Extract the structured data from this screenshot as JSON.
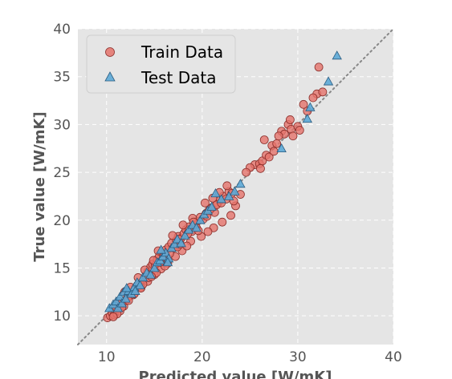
{
  "chart_data": {
    "type": "scatter",
    "xlabel": "Predicted value [W/mK]",
    "ylabel": "True value [W/mK]",
    "xlim": [
      7,
      40
    ],
    "ylim": [
      7,
      40
    ],
    "xticks": [
      "10",
      "20",
      "30",
      "40"
    ],
    "yticks": [
      "10",
      "15",
      "20",
      "25",
      "30",
      "35",
      "40"
    ],
    "grid": true,
    "legend_position": "top-left",
    "reference_line": "y = x (dotted)",
    "colors": {
      "train": "#E5736B",
      "test": "#5CA8D6",
      "background": "#E5E5E5",
      "reference": "#888888"
    },
    "series": [
      {
        "name": "Train Data",
        "marker": "circle",
        "points": [
          [
            10.1,
            9.8
          ],
          [
            10.4,
            10.0
          ],
          [
            10.6,
            10.3
          ],
          [
            10.8,
            10.1
          ],
          [
            11.0,
            10.6
          ],
          [
            11.2,
            10.9
          ],
          [
            11.4,
            10.5
          ],
          [
            11.6,
            11.2
          ],
          [
            11.8,
            11.0
          ],
          [
            12.0,
            11.6
          ],
          [
            12.2,
            11.9
          ],
          [
            12.4,
            12.1
          ],
          [
            12.6,
            12.4
          ],
          [
            12.8,
            12.2
          ],
          [
            13.0,
            12.9
          ],
          [
            13.2,
            13.1
          ],
          [
            13.4,
            13.4
          ],
          [
            13.6,
            13.0
          ],
          [
            13.9,
            13.8
          ],
          [
            14.1,
            14.2
          ],
          [
            14.3,
            14.6
          ],
          [
            14.6,
            15.1
          ],
          [
            14.8,
            15.4
          ],
          [
            15.1,
            15.3
          ],
          [
            15.3,
            15.9
          ],
          [
            15.5,
            16.2
          ],
          [
            15.8,
            16.6
          ],
          [
            16.0,
            16.3
          ],
          [
            16.2,
            16.9
          ],
          [
            16.5,
            17.2
          ],
          [
            16.8,
            17.6
          ],
          [
            17.0,
            17.1
          ],
          [
            17.3,
            17.9
          ],
          [
            17.5,
            18.3
          ],
          [
            17.8,
            18.1
          ],
          [
            18.1,
            18.6
          ],
          [
            18.3,
            19.0
          ],
          [
            18.6,
            19.3
          ],
          [
            18.9,
            18.8
          ],
          [
            19.2,
            19.6
          ],
          [
            19.5,
            19.9
          ],
          [
            19.8,
            20.3
          ],
          [
            20.1,
            20.1
          ],
          [
            20.4,
            20.7
          ],
          [
            20.7,
            21.0
          ],
          [
            21.0,
            21.3
          ],
          [
            21.3,
            20.8
          ],
          [
            21.6,
            21.7
          ],
          [
            21.9,
            22.1
          ],
          [
            22.2,
            22.5
          ],
          [
            22.5,
            22.2
          ],
          [
            22.8,
            23.0
          ],
          [
            23.1,
            22.8
          ],
          [
            23.5,
            21.5
          ],
          [
            23.0,
            20.5
          ],
          [
            22.1,
            19.8
          ],
          [
            21.2,
            19.2
          ],
          [
            20.6,
            18.8
          ],
          [
            19.9,
            18.3
          ],
          [
            18.8,
            17.8
          ],
          [
            17.9,
            16.8
          ],
          [
            17.2,
            16.2
          ],
          [
            16.4,
            15.5
          ],
          [
            15.7,
            14.9
          ],
          [
            15.0,
            14.3
          ],
          [
            14.3,
            13.6
          ],
          [
            13.6,
            12.9
          ],
          [
            12.9,
            12.3
          ],
          [
            12.3,
            11.6
          ],
          [
            11.6,
            10.9
          ],
          [
            11.1,
            10.2
          ],
          [
            10.7,
            9.9
          ],
          [
            14.4,
            14.0
          ],
          [
            15.2,
            14.5
          ],
          [
            16.3,
            15.7
          ],
          [
            17.4,
            17.2
          ],
          [
            18.5,
            18.6
          ],
          [
            19.4,
            19.2
          ],
          [
            20.5,
            20.4
          ],
          [
            21.5,
            21.6
          ],
          [
            16.9,
            18.4
          ],
          [
            18.0,
            19.5
          ],
          [
            19.0,
            20.2
          ],
          [
            20.3,
            21.8
          ],
          [
            21.1,
            22.3
          ],
          [
            15.4,
            16.8
          ],
          [
            14.0,
            14.8
          ],
          [
            13.3,
            14.0
          ],
          [
            12.5,
            13.0
          ],
          [
            11.9,
            12.5
          ],
          [
            11.3,
            11.5
          ],
          [
            10.9,
            11.0
          ],
          [
            13.8,
            13.3
          ],
          [
            14.9,
            15.8
          ],
          [
            16.6,
            16.5
          ],
          [
            17.7,
            17.5
          ],
          [
            18.4,
            17.3
          ],
          [
            19.6,
            18.9
          ],
          [
            22.0,
            21.8
          ],
          [
            23.3,
            22.0
          ],
          [
            24.0,
            22.7
          ],
          [
            25.5,
            25.8
          ],
          [
            26.0,
            25.9
          ],
          [
            26.3,
            26.2
          ],
          [
            26.7,
            26.8
          ],
          [
            27.0,
            26.6
          ],
          [
            27.3,
            27.8
          ],
          [
            27.8,
            28.0
          ],
          [
            28.3,
            29.3
          ],
          [
            28.6,
            29.0
          ],
          [
            29.0,
            30.0
          ],
          [
            29.3,
            29.5
          ],
          [
            29.5,
            28.8
          ],
          [
            30.0,
            29.8
          ],
          [
            30.6,
            32.1
          ],
          [
            31.0,
            31.4
          ],
          [
            29.2,
            30.5
          ],
          [
            28.0,
            28.8
          ],
          [
            26.5,
            28.4
          ],
          [
            25.0,
            25.5
          ],
          [
            26.1,
            25.4
          ],
          [
            27.5,
            27.2
          ],
          [
            32.0,
            33.2
          ],
          [
            32.6,
            33.4
          ],
          [
            32.2,
            36.0
          ],
          [
            31.6,
            32.8
          ],
          [
            30.2,
            29.4
          ],
          [
            24.6,
            25.0
          ],
          [
            22.6,
            23.6
          ],
          [
            21.8,
            22.9
          ],
          [
            20.9,
            21.2
          ],
          [
            19.1,
            19.8
          ],
          [
            17.6,
            18.0
          ],
          [
            16.1,
            15.2
          ],
          [
            15.6,
            15.6
          ],
          [
            14.7,
            14.1
          ]
        ]
      },
      {
        "name": "Test Data",
        "marker": "triangle",
        "points": [
          [
            10.3,
            10.8
          ],
          [
            10.7,
            11.2
          ],
          [
            11.0,
            11.5
          ],
          [
            11.2,
            10.8
          ],
          [
            11.4,
            12.0
          ],
          [
            11.6,
            11.3
          ],
          [
            11.8,
            12.5
          ],
          [
            12.0,
            11.8
          ],
          [
            12.3,
            12.6
          ],
          [
            12.6,
            12.3
          ],
          [
            12.9,
            13.0
          ],
          [
            13.2,
            13.5
          ],
          [
            13.5,
            13.2
          ],
          [
            13.8,
            14.0
          ],
          [
            14.2,
            14.5
          ],
          [
            14.6,
            14.3
          ],
          [
            15.0,
            15.0
          ],
          [
            15.3,
            15.6
          ],
          [
            15.6,
            15.8
          ],
          [
            15.9,
            16.2
          ],
          [
            16.2,
            16.6
          ],
          [
            16.5,
            16.0
          ],
          [
            16.8,
            17.1
          ],
          [
            17.1,
            17.5
          ],
          [
            17.4,
            18.0
          ],
          [
            17.8,
            17.6
          ],
          [
            18.2,
            18.4
          ],
          [
            18.6,
            19.0
          ],
          [
            19.0,
            19.5
          ],
          [
            19.4,
            19.2
          ],
          [
            19.8,
            20.0
          ],
          [
            20.2,
            20.6
          ],
          [
            20.6,
            21.0
          ],
          [
            21.0,
            21.4
          ],
          [
            21.4,
            22.8
          ],
          [
            22.0,
            22.2
          ],
          [
            22.8,
            22.5
          ],
          [
            23.4,
            23.0
          ],
          [
            24.0,
            23.8
          ],
          [
            28.3,
            27.5
          ],
          [
            31.0,
            30.6
          ],
          [
            31.3,
            31.8
          ],
          [
            33.2,
            34.5
          ],
          [
            34.1,
            37.2
          ],
          [
            15.7,
            16.9
          ],
          [
            16.4,
            15.6
          ],
          [
            12.1,
            12.9
          ],
          [
            13.0,
            12.6
          ]
        ]
      }
    ]
  }
}
